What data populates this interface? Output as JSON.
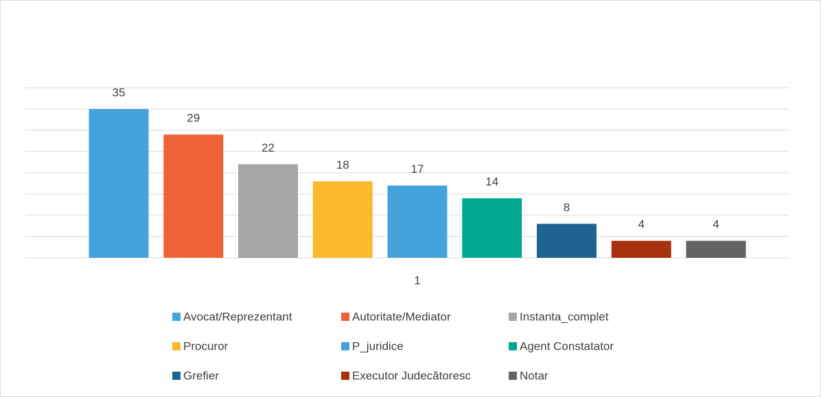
{
  "chart_data": {
    "type": "bar",
    "categories": [
      "1"
    ],
    "series": [
      {
        "name": "Avocat/Reprezentant",
        "color": "#44a3dc",
        "values": [
          35
        ]
      },
      {
        "name": "Autoritate/Mediator",
        "color": "#f06237",
        "values": [
          29
        ]
      },
      {
        "name": "Instanta_complet",
        "color": "#a5a5a5",
        "values": [
          22
        ]
      },
      {
        "name": "Procuror",
        "color": "#fbba2d",
        "values": [
          18
        ]
      },
      {
        "name": "P_juridice",
        "color": "#44a3dc",
        "values": [
          17
        ]
      },
      {
        "name": "Agent Constatator",
        "color": "#00a88f",
        "values": [
          14
        ]
      },
      {
        "name": "Grefier",
        "color": "#1e6391",
        "values": [
          8
        ]
      },
      {
        "name": "Executor Judecătoresc",
        "color": "#a8310e",
        "values": [
          4
        ]
      },
      {
        "name": "Notar",
        "color": "#636363",
        "values": [
          4
        ]
      }
    ],
    "ylim": [
      0,
      40
    ],
    "yticks": [
      0,
      5,
      10,
      15,
      20,
      25,
      30,
      35,
      40
    ],
    "grid": true,
    "legend": "bottom"
  }
}
